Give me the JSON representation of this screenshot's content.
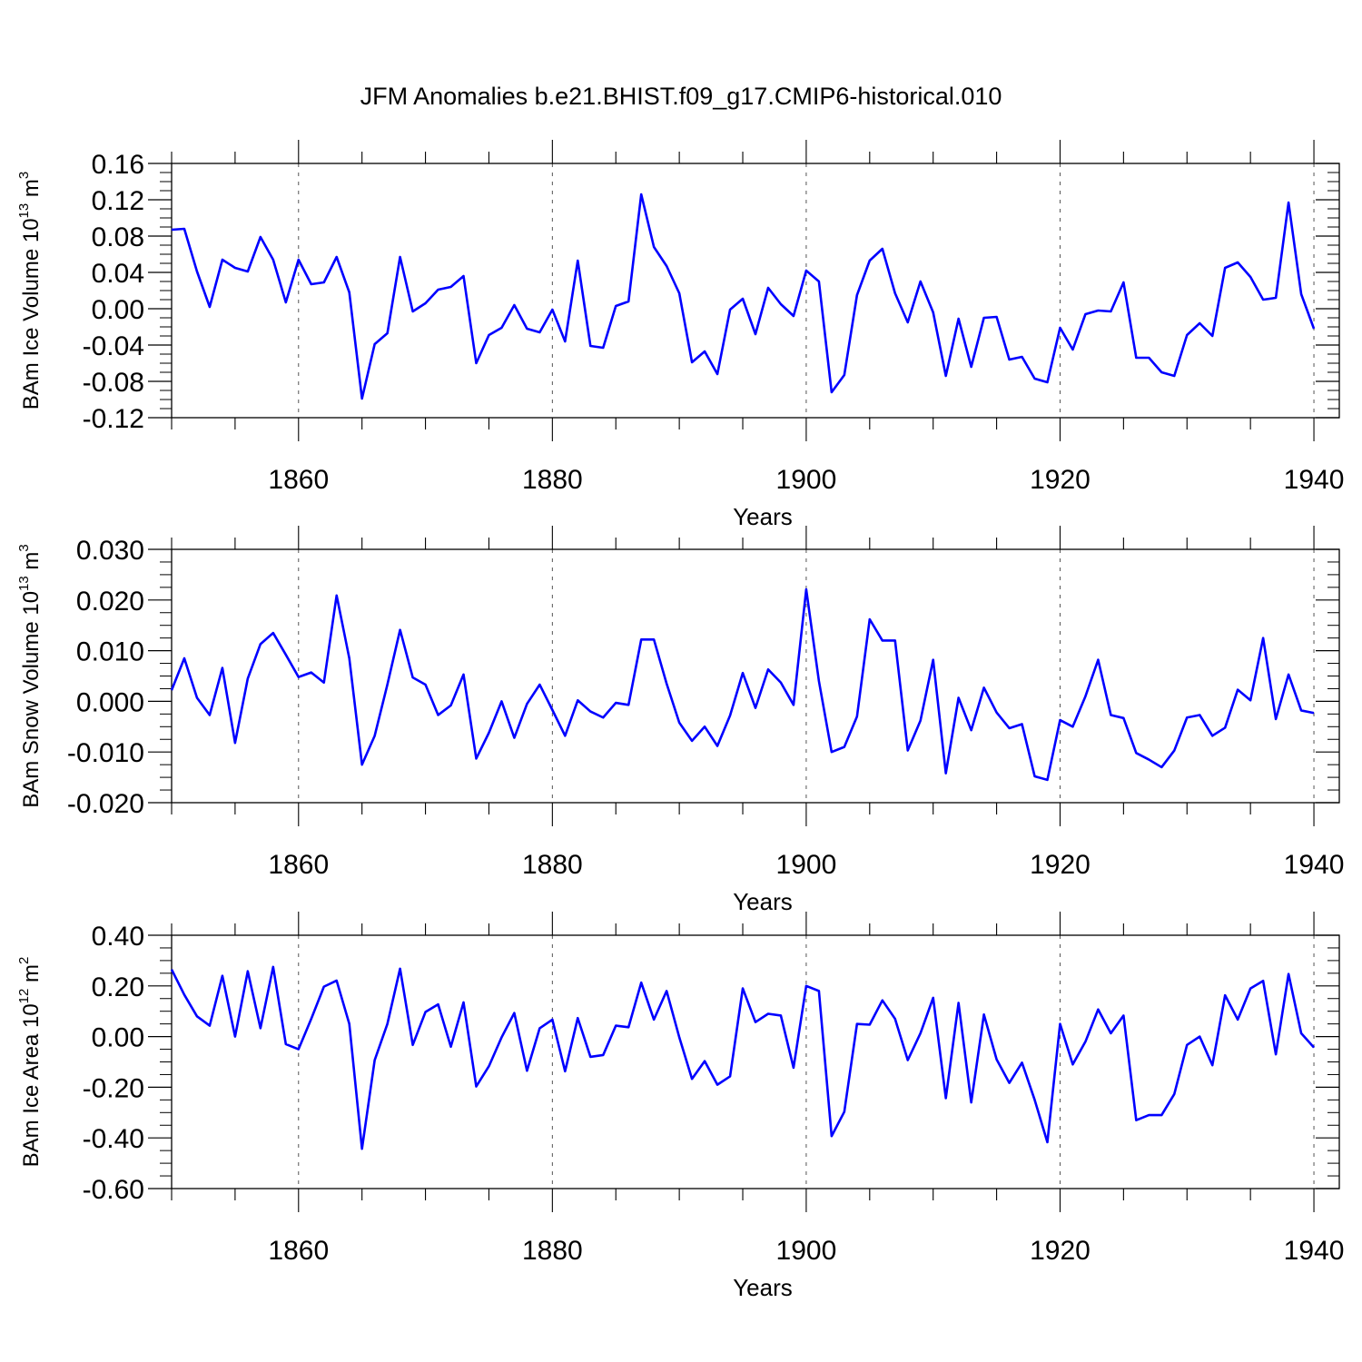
{
  "title": "JFM Anomalies b.e21.BHIST.f09_g17.CMIP6-historical.010",
  "chart_data": [
    {
      "type": "line",
      "ylabel": "BAm Ice Volume 10",
      "ylabel_exp": "13",
      "ylabel_unit": "m",
      "ylabel_unit_exp": "3",
      "xlabel": "Years",
      "xlim": [
        1850,
        1940
      ],
      "ylim": [
        -0.12,
        0.16
      ],
      "yticks": [
        "-0.12",
        "-0.08",
        "-0.04",
        "0.00",
        "0.04",
        "0.08",
        "0.12",
        "0.16"
      ],
      "ytick_values": [
        -0.12,
        -0.08,
        -0.04,
        0.0,
        0.04,
        0.08,
        0.12,
        0.16
      ],
      "xticks": [
        "1860",
        "1880",
        "1900",
        "1920",
        "1940"
      ],
      "xtick_values": [
        1860,
        1880,
        1900,
        1920,
        1940
      ],
      "grid": "vertical dashed at major x ticks",
      "line_color": "#0000ff",
      "x_start": 1850,
      "values": [
        0.087,
        0.088,
        0.041,
        0.002,
        0.054,
        0.045,
        0.041,
        0.079,
        0.054,
        0.007,
        0.054,
        0.027,
        0.029,
        0.057,
        0.018,
        -0.099,
        -0.039,
        -0.027,
        0.057,
        -0.003,
        0.006,
        0.021,
        0.024,
        0.036,
        -0.06,
        -0.029,
        -0.021,
        0.004,
        -0.022,
        -0.026,
        -0.001,
        -0.036,
        0.053,
        -0.041,
        -0.043,
        0.003,
        0.008,
        0.126,
        0.068,
        0.047,
        0.017,
        -0.059,
        -0.047,
        -0.072,
        -0.001,
        0.011,
        -0.028,
        0.023,
        0.005,
        -0.008,
        0.042,
        0.03,
        -0.092,
        -0.073,
        0.015,
        0.053,
        0.066,
        0.017,
        -0.015,
        0.03,
        -0.004,
        -0.074,
        -0.011,
        -0.064,
        -0.01,
        -0.009,
        -0.056,
        -0.053,
        -0.077,
        -0.081,
        -0.021,
        -0.045,
        -0.006,
        -0.002,
        -0.003,
        0.029,
        -0.054,
        -0.054,
        -0.07,
        -0.074,
        -0.029,
        -0.016,
        -0.03,
        0.045,
        0.051,
        0.035,
        0.01,
        0.012,
        0.117,
        0.016,
        -0.022
      ]
    },
    {
      "type": "line",
      "ylabel": "BAm Snow Volume 10",
      "ylabel_exp": "13",
      "ylabel_unit": "m",
      "ylabel_unit_exp": "3",
      "xlabel": "Years",
      "xlim": [
        1850,
        1940
      ],
      "ylim": [
        -0.02,
        0.03
      ],
      "yticks": [
        "-0.020",
        "-0.010",
        "0.000",
        "0.010",
        "0.020",
        "0.030"
      ],
      "ytick_values": [
        -0.02,
        -0.01,
        0.0,
        0.01,
        0.02,
        0.03
      ],
      "xticks": [
        "1860",
        "1880",
        "1900",
        "1920",
        "1940"
      ],
      "xtick_values": [
        1860,
        1880,
        1900,
        1920,
        1940
      ],
      "grid": "vertical dashed at major x ticks",
      "line_color": "#0000ff",
      "x_start": 1850,
      "values": [
        0.0022,
        0.0085,
        0.0007,
        -0.0027,
        0.0066,
        -0.0082,
        0.0045,
        0.0113,
        0.0135,
        0.0092,
        0.0048,
        0.0057,
        0.0037,
        0.0209,
        0.0085,
        -0.0125,
        -0.0068,
        0.0033,
        0.0141,
        0.0047,
        0.0033,
        -0.0027,
        -0.0008,
        0.0053,
        -0.0113,
        -0.0062,
        0.0,
        -0.0072,
        -0.0005,
        0.0033,
        -0.0017,
        -0.0068,
        0.0002,
        -0.002,
        -0.0032,
        -0.0003,
        -0.0007,
        0.0122,
        0.0122,
        0.0035,
        -0.0042,
        -0.0078,
        -0.005,
        -0.0088,
        -0.0028,
        0.0056,
        -0.0013,
        0.0063,
        0.0037,
        -0.0007,
        0.0221,
        0.004,
        -0.01,
        -0.009,
        -0.003,
        0.0162,
        0.012,
        0.012,
        -0.0097,
        -0.0038,
        0.0082,
        -0.0142,
        0.0007,
        -0.0057,
        0.0027,
        -0.0022,
        -0.0053,
        -0.0045,
        -0.0148,
        -0.0155,
        -0.0037,
        -0.005,
        0.001,
        0.0082,
        -0.0027,
        -0.0033,
        -0.0102,
        -0.0115,
        -0.013,
        -0.0097,
        -0.0032,
        -0.0027,
        -0.0068,
        -0.0052,
        0.0023,
        0.0002,
        0.0125,
        -0.0035,
        0.0053,
        -0.0018,
        -0.0023
      ]
    },
    {
      "type": "line",
      "ylabel": "BAm Ice Area 10",
      "ylabel_exp": "12",
      "ylabel_unit": "m",
      "ylabel_unit_exp": "2",
      "xlabel": "Years",
      "xlim": [
        1850,
        1940
      ],
      "ylim": [
        -0.6,
        0.4
      ],
      "yticks": [
        "-0.60",
        "-0.40",
        "-0.20",
        "0.00",
        "0.20",
        "0.40"
      ],
      "ytick_values": [
        -0.6,
        -0.4,
        -0.2,
        0.0,
        0.2,
        0.4
      ],
      "xticks": [
        "1860",
        "1880",
        "1900",
        "1920",
        "1940"
      ],
      "xtick_values": [
        1860,
        1880,
        1900,
        1920,
        1940
      ],
      "grid": "vertical dashed at major x ticks",
      "line_color": "#0000ff",
      "x_start": 1850,
      "values": [
        0.265,
        0.165,
        0.08,
        0.043,
        0.24,
        0.0,
        0.258,
        0.033,
        0.275,
        -0.03,
        -0.05,
        0.07,
        0.197,
        0.221,
        0.05,
        -0.443,
        -0.093,
        0.05,
        0.268,
        -0.033,
        0.097,
        0.127,
        -0.04,
        0.135,
        -0.197,
        -0.117,
        -0.003,
        0.093,
        -0.135,
        0.033,
        0.067,
        -0.137,
        0.073,
        -0.08,
        -0.073,
        0.043,
        0.037,
        0.213,
        0.067,
        0.18,
        -0.003,
        -0.167,
        -0.097,
        -0.19,
        -0.157,
        0.19,
        0.057,
        0.09,
        0.083,
        -0.123,
        0.2,
        0.18,
        -0.393,
        -0.297,
        0.05,
        0.047,
        0.143,
        0.07,
        -0.093,
        0.013,
        0.153,
        -0.243,
        0.133,
        -0.26,
        0.087,
        -0.09,
        -0.183,
        -0.103,
        -0.25,
        -0.417,
        0.05,
        -0.11,
        -0.02,
        0.107,
        0.013,
        0.083,
        -0.33,
        -0.31,
        -0.31,
        -0.227,
        -0.033,
        0.0,
        -0.113,
        0.163,
        0.067,
        0.19,
        0.22,
        -0.07,
        0.247,
        0.013,
        -0.043
      ]
    }
  ]
}
